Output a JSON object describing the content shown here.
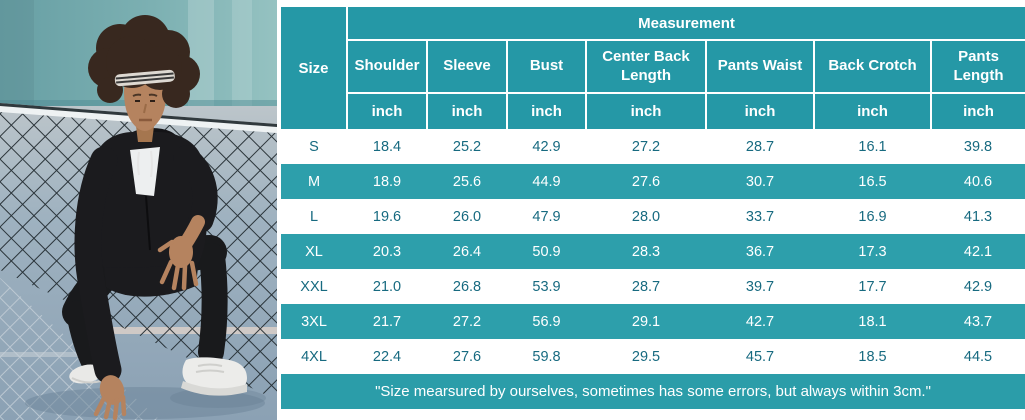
{
  "photo": {
    "alt": "man-in-black-tracksuit-crouching-by-tennis-net",
    "colors": {
      "wall_teal": "#74a9ad",
      "court_floor": "#94aabc",
      "net_dark": "#20292e",
      "tracksuit_black": "#1b1b1e",
      "skin": "#b5835f",
      "sneaker_white": "#ececea"
    }
  },
  "table": {
    "measurement_header": "Measurement",
    "size_header": "Size",
    "columns": [
      "Shoulder",
      "Sleeve",
      "Bust",
      "Center Back Length",
      "Pants Waist",
      "Back Crotch",
      "Pants Length"
    ],
    "units": [
      "inch",
      "inch",
      "inch",
      "inch",
      "inch",
      "inch",
      "inch"
    ],
    "rows": [
      {
        "size": "S",
        "values": [
          "18.4",
          "25.2",
          "42.9",
          "27.2",
          "28.7",
          "16.1",
          "39.8"
        ]
      },
      {
        "size": "M",
        "values": [
          "18.9",
          "25.6",
          "44.9",
          "27.6",
          "30.7",
          "16.5",
          "40.6"
        ]
      },
      {
        "size": "L",
        "values": [
          "19.6",
          "26.0",
          "47.9",
          "28.0",
          "33.7",
          "16.9",
          "41.3"
        ]
      },
      {
        "size": "XL",
        "values": [
          "20.3",
          "26.4",
          "50.9",
          "28.3",
          "36.7",
          "17.3",
          "42.1"
        ]
      },
      {
        "size": "XXL",
        "values": [
          "21.0",
          "26.8",
          "53.9",
          "28.7",
          "39.7",
          "17.7",
          "42.9"
        ]
      },
      {
        "size": "3XL",
        "values": [
          "21.7",
          "27.2",
          "56.9",
          "29.1",
          "42.7",
          "18.1",
          "43.7"
        ]
      },
      {
        "size": "4XL",
        "values": [
          "22.4",
          "27.6",
          "59.8",
          "29.5",
          "45.7",
          "18.5",
          "44.5"
        ]
      }
    ],
    "footnote": "\"Size mearsured by ourselves, sometimes has some errors, but always within 3cm.\""
  },
  "colors": {
    "teal_header": "#2598a6",
    "teal_zebra": "#2d9fab",
    "text_dark": "#176a80",
    "white": "#ffffff"
  }
}
